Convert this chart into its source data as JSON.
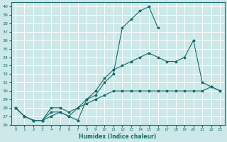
{
  "xlabel": "Humidex (Indice chaleur)",
  "bg_color": "#cce8e8",
  "grid_color": "#ffffff",
  "line_color": "#1a6b6b",
  "xlim": [
    -0.5,
    23.5
  ],
  "ylim": [
    26,
    40.5
  ],
  "xticks": [
    0,
    1,
    2,
    3,
    4,
    5,
    6,
    7,
    8,
    9,
    10,
    11,
    12,
    13,
    14,
    15,
    16,
    17,
    18,
    19,
    20,
    21,
    22,
    23
  ],
  "yticks": [
    26,
    27,
    28,
    29,
    30,
    31,
    32,
    33,
    34,
    35,
    36,
    37,
    38,
    39,
    40
  ],
  "line1_x": [
    0,
    1,
    2,
    3,
    4,
    5,
    6,
    7,
    8,
    9,
    10,
    11,
    12,
    13,
    14,
    15,
    16
  ],
  "line1_y": [
    28,
    27,
    26.5,
    26.5,
    27,
    27.5,
    27,
    26.5,
    29,
    29.5,
    31,
    32,
    37.5,
    38.5,
    39.5,
    40,
    37.5
  ],
  "line2_x": [
    0,
    1,
    2,
    3,
    4,
    5,
    6,
    7,
    8,
    9,
    10,
    11,
    12,
    13,
    14,
    15,
    16,
    17,
    18,
    19,
    20,
    21,
    22,
    23
  ],
  "line2_y": [
    28,
    27,
    26.5,
    26.5,
    28,
    28,
    27.5,
    28,
    29,
    30,
    31.5,
    32.5,
    33,
    33.5,
    34,
    34.5,
    34,
    33.5,
    33.5,
    34,
    36,
    31,
    30.5,
    30
  ],
  "line3_x": [
    0,
    1,
    2,
    3,
    4,
    5,
    6,
    7,
    8,
    9,
    10,
    11,
    12,
    13,
    14,
    15,
    16,
    17,
    18,
    19,
    20,
    21,
    22,
    23
  ],
  "line3_y": [
    28,
    27,
    26.5,
    26.5,
    27.5,
    27.5,
    27,
    28,
    28.5,
    29,
    29.5,
    30,
    30,
    30,
    30,
    30,
    30,
    30,
    30,
    30,
    30,
    30,
    30.5,
    30
  ]
}
